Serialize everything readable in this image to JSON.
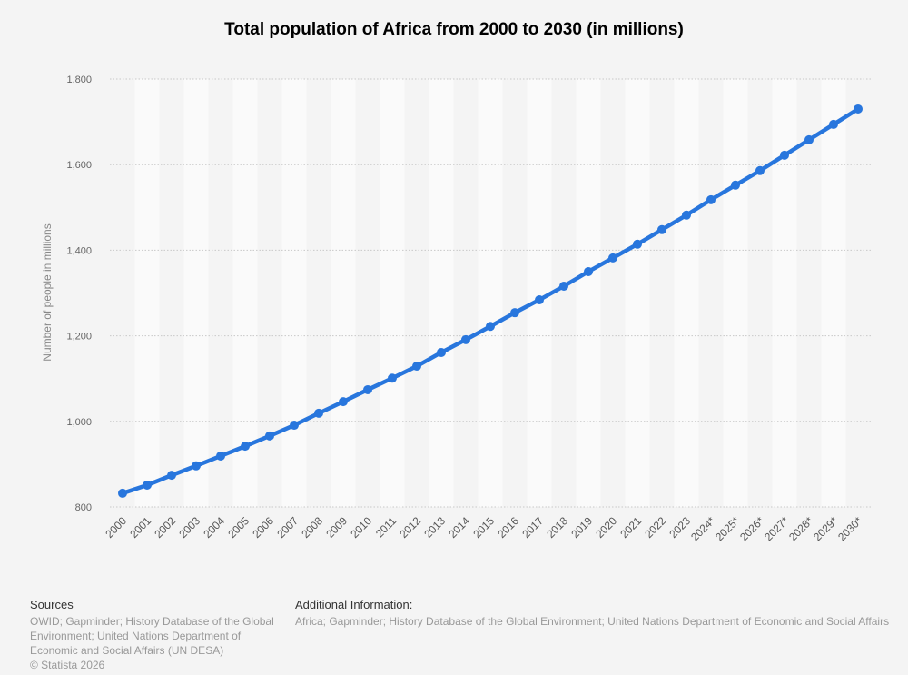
{
  "chart_data": {
    "type": "line",
    "title": "Total population of Africa from 2000 to 2030 (in millions)",
    "xlabel": "",
    "ylabel": "Number of people in millions",
    "ylim": [
      800,
      1800
    ],
    "yticks": [
      800,
      1000,
      1200,
      1400,
      1600,
      1800
    ],
    "ytick_labels": [
      "800",
      "1,000",
      "1,200",
      "1,400",
      "1,600",
      "1,800"
    ],
    "grid": true,
    "categories": [
      "2000",
      "2001",
      "2002",
      "2003",
      "2004",
      "2005",
      "2006",
      "2007",
      "2008",
      "2009",
      "2010",
      "2011",
      "2012",
      "2013",
      "2014",
      "2015",
      "2016",
      "2017",
      "2018",
      "2019",
      "2020",
      "2021",
      "2022",
      "2023",
      "2024*",
      "2025*",
      "2026*",
      "2027*",
      "2028*",
      "2029*",
      "2030*"
    ],
    "series": [
      {
        "name": "Population",
        "color": "#2876dd",
        "values": [
          832,
          851,
          874,
          896,
          919,
          942,
          966,
          991,
          1019,
          1046,
          1074,
          1101,
          1129,
          1161,
          1191,
          1222,
          1254,
          1284,
          1316,
          1350,
          1382,
          1414,
          1448,
          1482,
          1518,
          1552,
          1586,
          1622,
          1658,
          1694,
          1730
        ]
      }
    ]
  },
  "footer": {
    "sources_heading": "Sources",
    "sources_lines": [
      "OWID; Gapminder; History Database of the Global",
      "Environment; United Nations Department of",
      "Economic and Social Affairs (UN DESA)"
    ],
    "copyright": "© Statista 2026",
    "additional_heading": "Additional Information:",
    "additional_text": "Africa; Gapminder; History Database of the Global Environment; United Nations Department of Economic and Social Affairs"
  }
}
